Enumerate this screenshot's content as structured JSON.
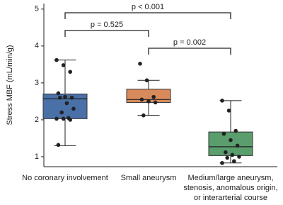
{
  "chart_data": {
    "type": "box",
    "y_label": "Stress MBF (mL/min/g)",
    "categories": [
      "No coronary involvement",
      "Small aneurysm",
      "Medium/large aneurysm,\nstenosis, anomalous origin,\nor interarterial course"
    ],
    "boxes": [
      {
        "color": "#4a70a8",
        "min": 1.3,
        "q1": 2.03,
        "median": 2.57,
        "q3": 2.7,
        "max": 3.62,
        "points": [
          3.62,
          3.48,
          3.3,
          2.72,
          2.62,
          2.6,
          2.6,
          2.45,
          2.3,
          2.2,
          2.05,
          2.03,
          2.03,
          2.0,
          1.32
        ]
      },
      {
        "color": "#d98a5c",
        "min": 2.12,
        "q1": 2.47,
        "median": 2.55,
        "q3": 2.83,
        "max": 3.07,
        "points": [
          3.52,
          3.07,
          2.62,
          2.55,
          2.5,
          2.47,
          2.12
        ]
      },
      {
        "color": "#5b9e6e",
        "min": 0.83,
        "q1": 1.03,
        "median": 1.27,
        "q3": 1.67,
        "max": 2.52,
        "points": [
          2.52,
          2.25,
          1.7,
          1.62,
          1.45,
          1.3,
          1.12,
          1.05,
          1.0,
          0.97,
          0.88,
          0.83
        ]
      }
    ],
    "annotations": [
      "p < 0.001",
      "p = 0.525",
      "p = 0.002"
    ],
    "ylim": [
      0.73,
      5.15
    ],
    "yticks": [
      1,
      2,
      3,
      4,
      5
    ]
  }
}
